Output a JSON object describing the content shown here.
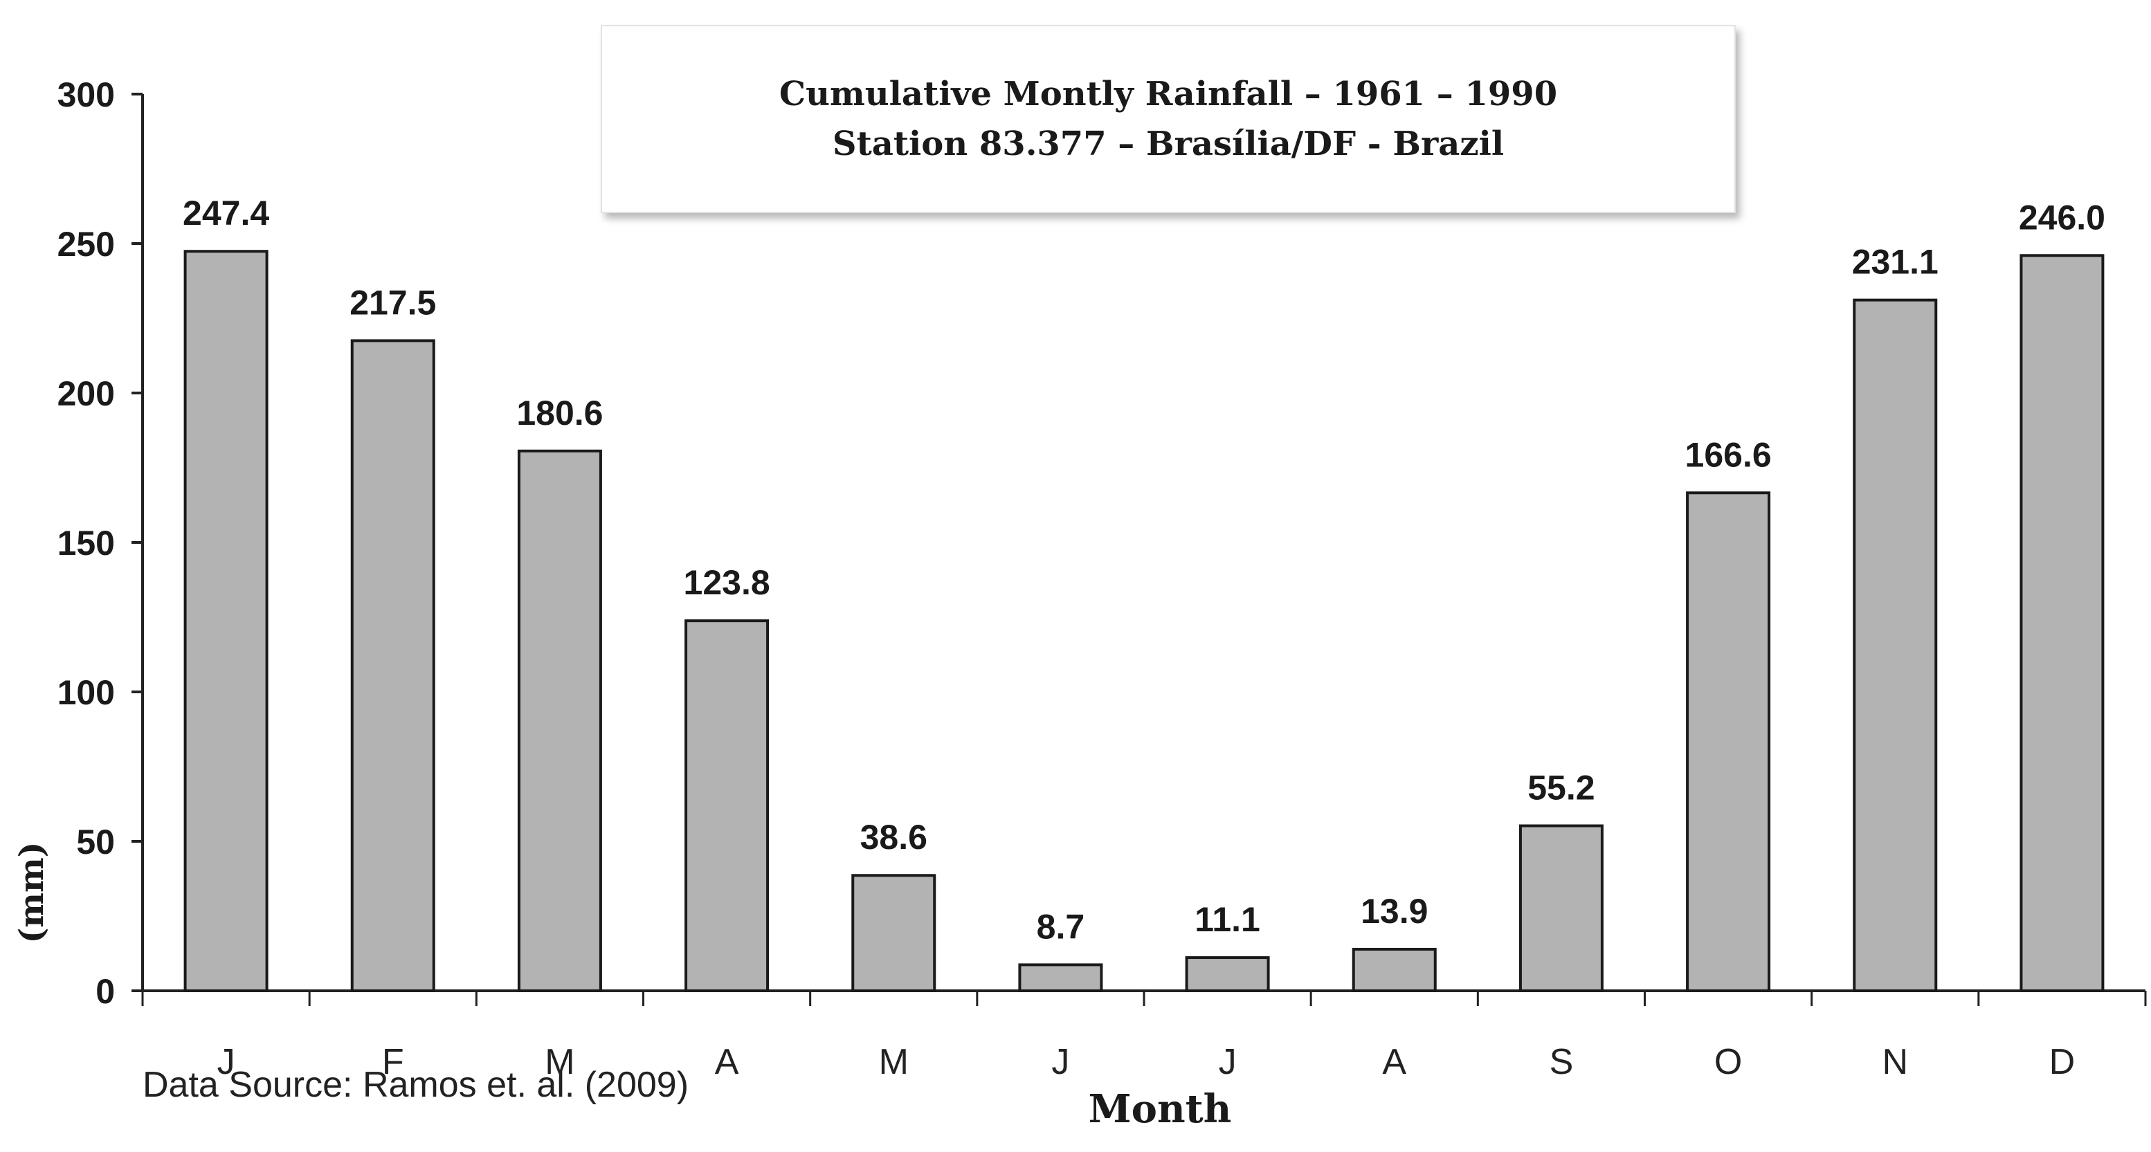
{
  "chart_data": {
    "type": "bar",
    "title": "Cumulative Montly Rainfall – 1961 – 1990",
    "subtitle": "Station 83.377 – Brasília/DF - Brazil",
    "xlabel": "Month",
    "ylabel": "(mm)",
    "ylim": [
      0,
      300
    ],
    "yticks": [
      0,
      50,
      100,
      150,
      200,
      250,
      300
    ],
    "categories": [
      "J",
      "F",
      "M",
      "A",
      "M",
      "J",
      "J",
      "A",
      "S",
      "O",
      "N",
      "D"
    ],
    "values": [
      247.4,
      217.5,
      180.6,
      123.8,
      38.6,
      8.7,
      11.1,
      13.9,
      55.2,
      166.6,
      231.1,
      246.0
    ],
    "value_labels": [
      "247.4",
      "217.5",
      "180.6",
      "123.8",
      "38.6",
      "8.7",
      "11.1",
      "13.9",
      "55.2",
      "166.6",
      "231.1",
      "246.0"
    ],
    "legend": "none",
    "grid": false,
    "bar_color": "#b3b3b3",
    "bar_edge_color": "#1a1a1a",
    "axis_color": "#222222"
  },
  "source_note": "Data Source: Ramos et. al. (2009)"
}
